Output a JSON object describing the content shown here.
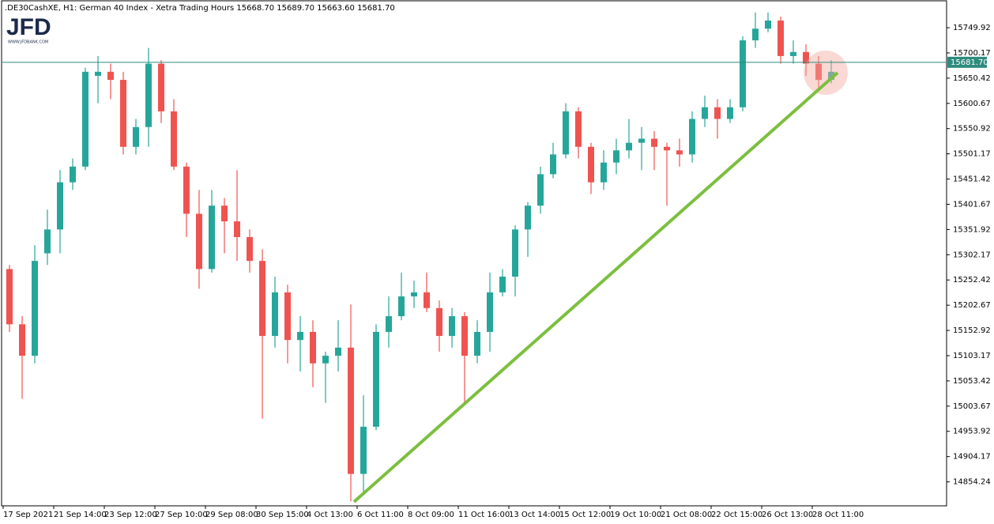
{
  "logo": {
    "text": "JFD",
    "url": "WWW.JFDBANK.COM"
  },
  "chart_data": {
    "type": "candlestick",
    "title": ".DE30CashXE, H1:  German 40 Index - Xetra Trading Hours  15668.70 15689.70 15663.60 15681.70",
    "up_color": "#26a69a",
    "down_color": "#ef5350",
    "categories": [
      "17 Sep 2021",
      null,
      null,
      null,
      "21 Sep 14:00",
      null,
      null,
      null,
      "23 Sep 12:00",
      null,
      null,
      null,
      "27 Sep 10:00",
      null,
      null,
      null,
      "29 Sep 08:00",
      null,
      null,
      null,
      "30 Sep 15:00",
      null,
      null,
      null,
      "4 Oct 13:00",
      null,
      null,
      null,
      "6 Oct 11:00",
      null,
      null,
      null,
      "8 Oct 09:00",
      null,
      null,
      null,
      "11 Oct 16:00",
      null,
      null,
      null,
      "13 Oct 14:00",
      null,
      null,
      null,
      "15 Oct 12:00",
      null,
      null,
      null,
      "19 Oct 10:00",
      null,
      null,
      null,
      "21 Oct 08:00",
      null,
      null,
      null,
      "22 Oct 15:00",
      null,
      null,
      null,
      "26 Oct 13:00",
      null,
      null,
      null,
      "28 Oct 11:00",
      null
    ],
    "open": [
      15274,
      15165,
      15103,
      15305,
      15352,
      15445,
      15476,
      15655,
      15663,
      15647,
      15515,
      15554,
      15679,
      15585,
      15476,
      15383,
      15274,
      15399,
      15368,
      15337,
      15290,
      15142,
      15228,
      15134,
      15150,
      15088,
      15103,
      15119,
      14870,
      14963,
      15150,
      15181,
      15220,
      15228,
      15197,
      15142,
      15181,
      15103,
      15150,
      15228,
      15259,
      15352,
      15399,
      15461,
      15500,
      15585,
      15515,
      15445,
      15484,
      15508,
      15523,
      15531,
      15515,
      15508,
      15500,
      15570,
      15593,
      15570,
      15593,
      15725,
      15748,
      15764,
      15694,
      15702,
      15679,
      15647
    ],
    "high": [
      15282,
      15181,
      15321,
      15391,
      15469,
      15492,
      15671,
      15694,
      15679,
      15663,
      15570,
      15710,
      15686,
      15609,
      15484,
      15430,
      15430,
      15414,
      15469,
      15352,
      15313,
      15259,
      15243,
      15181,
      15173,
      15111,
      15173,
      15204,
      15025,
      15165,
      15220,
      15267,
      15251,
      15267,
      15212,
      15197,
      15189,
      15173,
      15267,
      15274,
      15360,
      15406,
      15476,
      15523,
      15601,
      15593,
      15523,
      15508,
      15531,
      15570,
      15554,
      15546,
      15523,
      15531,
      15585,
      15616,
      15609,
      15609,
      15733,
      15780,
      15780,
      15772,
      15725,
      15717,
      15694,
      15686
    ],
    "low": [
      15150,
      15018,
      15088,
      15282,
      15305,
      15430,
      15469,
      15601,
      15609,
      15500,
      15500,
      15515,
      15562,
      15469,
      15337,
      15235,
      15267,
      15305,
      15290,
      15267,
      14979,
      15119,
      15088,
      15072,
      15041,
      15010,
      15072,
      14816,
      14831,
      14956,
      15119,
      15173,
      15197,
      15189,
      15111,
      15119,
      15010,
      15088,
      15111,
      15220,
      15220,
      15298,
      15383,
      15453,
      15492,
      15492,
      15422,
      15430,
      15461,
      15492,
      15469,
      15469,
      15399,
      15476,
      15484,
      15554,
      15531,
      15562,
      15585,
      15710,
      15741,
      15679,
      15679,
      15655,
      15632,
      15640
    ],
    "close": [
      15165,
      15103,
      15290,
      15352,
      15445,
      15476,
      15663,
      15663,
      15647,
      15515,
      15554,
      15679,
      15585,
      15476,
      15383,
      15274,
      15399,
      15368,
      15337,
      15290,
      15142,
      15228,
      15134,
      15150,
      15088,
      15103,
      15119,
      14870,
      14963,
      15150,
      15181,
      15220,
      15228,
      15197,
      15142,
      15181,
      15103,
      15150,
      15228,
      15259,
      15352,
      15399,
      15461,
      15500,
      15585,
      15515,
      15445,
      15484,
      15508,
      15523,
      15531,
      15515,
      15508,
      15500,
      15570,
      15593,
      15570,
      15593,
      15725,
      15748,
      15764,
      15694,
      15702,
      15679,
      15647,
      15663
    ],
    "last_price": {
      "value": 15681.7,
      "label": "15681.70"
    },
    "last_price_color": "#2e8b7e",
    "ylim": [
      14807,
      15803
    ],
    "yticks": [
      15749.92,
      15700.17,
      15650.42,
      15600.67,
      15550.92,
      15501.17,
      15451.42,
      15401.67,
      15351.92,
      15302.17,
      15252.42,
      15202.67,
      15152.92,
      15103.17,
      15053.42,
      15003.67,
      14953.92,
      14904.17,
      14854.24
    ],
    "grid": false
  }
}
